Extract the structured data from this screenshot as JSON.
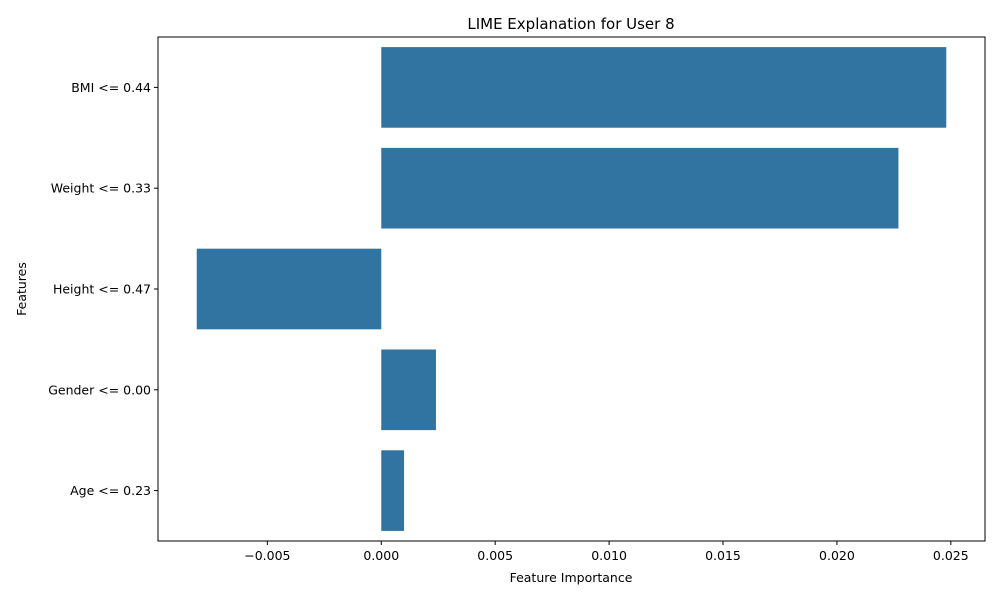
{
  "chart_data": {
    "type": "bar",
    "orientation": "horizontal",
    "title": "LIME Explanation for User 8",
    "xlabel": "Feature Importance",
    "ylabel": "Features",
    "categories": [
      "BMI <= 0.44",
      "Weight <= 0.33",
      "Height <= 0.47",
      "Gender <= 0.00",
      "Age <= 0.23"
    ],
    "values": [
      0.0248,
      0.0227,
      -0.0081,
      0.0024,
      0.001
    ],
    "xlim": [
      -0.0098,
      0.0265
    ],
    "xticks": [
      -0.005,
      0.0,
      0.005,
      0.01,
      0.015,
      0.02,
      0.025
    ],
    "xtick_labels": [
      "−0.005",
      "0.000",
      "0.005",
      "0.010",
      "0.015",
      "0.020",
      "0.025"
    ],
    "bar_color": "#3274a1",
    "grid": false
  }
}
